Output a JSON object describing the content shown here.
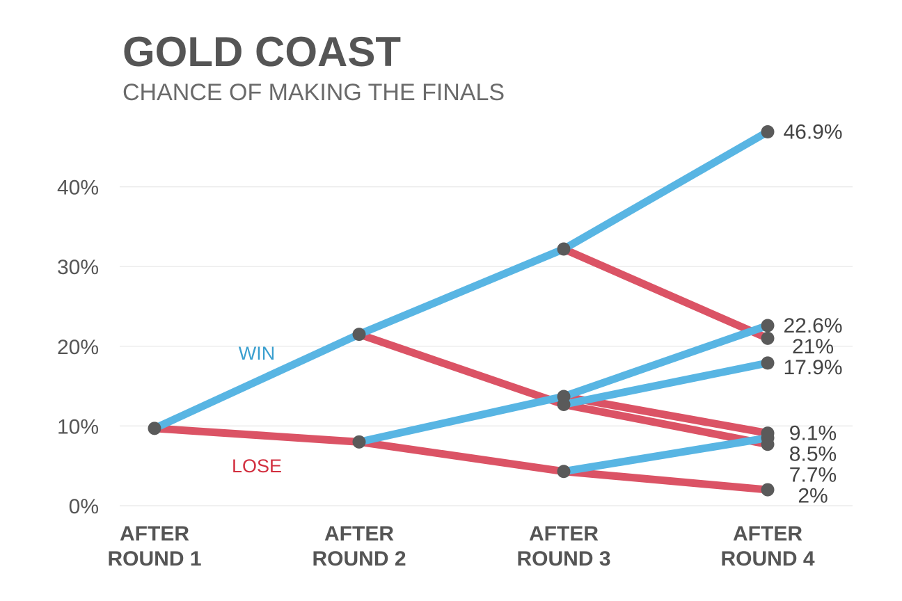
{
  "title": "GOLD COAST",
  "subtitle": "CHANCE OF MAKING THE FINALS",
  "chart_data": {
    "type": "line",
    "title": "GOLD COAST",
    "subtitle": "CHANCE OF MAKING THE FINALS",
    "x_categories": [
      [
        "AFTER",
        "ROUND 1"
      ],
      [
        "AFTER",
        "ROUND 2"
      ],
      [
        "AFTER",
        "ROUND 3"
      ],
      [
        "AFTER",
        "ROUND 4"
      ]
    ],
    "ylim": [
      0,
      46.9
    ],
    "y_ticks": [
      0,
      10,
      20,
      30,
      40
    ],
    "y_tick_labels": [
      "0%",
      "10%",
      "20%",
      "30%",
      "40%"
    ],
    "grid": true,
    "colors": {
      "win": "#58b5e3",
      "lose": "#d9475a",
      "node": "#5a5a5a",
      "grid": "#e6e6e6"
    },
    "series_labels": {
      "win": "WIN",
      "lose": "LOSE"
    },
    "nodes": [
      {
        "round": 0,
        "value": 9.7
      },
      {
        "round": 1,
        "value": 21.5
      },
      {
        "round": 1,
        "value": 8.0
      },
      {
        "round": 2,
        "value": 32.2
      },
      {
        "round": 2,
        "value": 13.7
      },
      {
        "round": 2,
        "value": 12.7
      },
      {
        "round": 2,
        "value": 4.3
      },
      {
        "round": 3,
        "value": 46.9
      },
      {
        "round": 3,
        "value": 22.6
      },
      {
        "round": 3,
        "value": 21.0
      },
      {
        "round": 3,
        "value": 17.9
      },
      {
        "round": 3,
        "value": 9.1
      },
      {
        "round": 3,
        "value": 8.5
      },
      {
        "round": 3,
        "value": 7.7
      },
      {
        "round": 3,
        "value": 2.0
      }
    ],
    "segments": [
      {
        "outcome": "lose",
        "from": [
          0,
          9.7
        ],
        "to": [
          1,
          8.0
        ]
      },
      {
        "outcome": "lose",
        "from": [
          1,
          8.0
        ],
        "to": [
          2,
          4.3
        ]
      },
      {
        "outcome": "lose",
        "from": [
          2,
          4.3
        ],
        "to": [
          3,
          2.0
        ]
      },
      {
        "outcome": "lose",
        "from": [
          2,
          12.7
        ],
        "to": [
          3,
          7.7
        ]
      },
      {
        "outcome": "lose",
        "from": [
          2,
          32.2
        ],
        "to": [
          3,
          21.0
        ]
      },
      {
        "outcome": "lose",
        "from": [
          1,
          21.5
        ],
        "to": [
          2,
          12.7
        ]
      },
      {
        "outcome": "lose",
        "from": [
          2,
          13.7
        ],
        "to": [
          3,
          9.1
        ]
      },
      {
        "outcome": "win",
        "from": [
          0,
          9.7
        ],
        "to": [
          1,
          21.5
        ]
      },
      {
        "outcome": "win",
        "from": [
          1,
          21.5
        ],
        "to": [
          2,
          32.2
        ]
      },
      {
        "outcome": "win",
        "from": [
          2,
          32.2
        ],
        "to": [
          3,
          46.9
        ]
      },
      {
        "outcome": "win",
        "from": [
          1,
          8.0
        ],
        "to": [
          2,
          13.7
        ]
      },
      {
        "outcome": "win",
        "from": [
          2,
          13.7
        ],
        "to": [
          3,
          22.6
        ]
      },
      {
        "outcome": "win",
        "from": [
          2,
          12.7
        ],
        "to": [
          3,
          17.9
        ]
      },
      {
        "outcome": "win",
        "from": [
          2,
          4.3
        ],
        "to": [
          3,
          8.5
        ]
      }
    ],
    "end_labels": [
      {
        "value": 46.9,
        "label": "46.9%"
      },
      {
        "value": 22.6,
        "label": "22.6%"
      },
      {
        "value": 21.0,
        "label": "21%"
      },
      {
        "value": 17.9,
        "label": "17.9%"
      },
      {
        "value": 9.1,
        "label": "9.1%"
      },
      {
        "value": 8.5,
        "label": "8.5%"
      },
      {
        "value": 7.7,
        "label": "7.7%"
      },
      {
        "value": 2.0,
        "label": "2%"
      }
    ]
  }
}
